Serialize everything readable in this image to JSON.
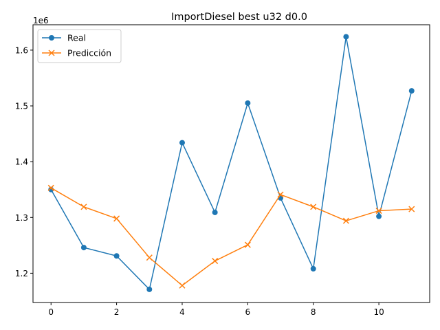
{
  "chart_data": {
    "type": "line",
    "title": "ImportDiesel best u32 d0.0",
    "xlabel": "",
    "ylabel": "",
    "y_offset_label": "1e6",
    "x": [
      0,
      1,
      2,
      3,
      4,
      5,
      6,
      7,
      8,
      9,
      10,
      11
    ],
    "xlim": [
      -0.55,
      11.55
    ],
    "ylim": [
      1.1475,
      1.6455
    ],
    "xticks": [
      0,
      2,
      4,
      6,
      8,
      10
    ],
    "xtick_labels": [
      "0",
      "2",
      "4",
      "6",
      "8",
      "10"
    ],
    "yticks": [
      1.2,
      1.3,
      1.4,
      1.5,
      1.6
    ],
    "ytick_labels": [
      "1.2",
      "1.3",
      "1.4",
      "1.5",
      "1.6"
    ],
    "grid": false,
    "legend_position": "top-left",
    "series": [
      {
        "name": "Real",
        "color": "#1f77b4",
        "marker": "circle",
        "values": [
          1.35,
          1.246,
          1.231,
          1.171,
          1.434,
          1.309,
          1.505,
          1.335,
          1.208,
          1.624,
          1.302,
          1.527
        ]
      },
      {
        "name": "Predicción",
        "color": "#ff7f0e",
        "marker": "x",
        "values": [
          1.353,
          1.319,
          1.298,
          1.228,
          1.178,
          1.222,
          1.251,
          1.341,
          1.319,
          1.294,
          1.312,
          1.315
        ]
      }
    ]
  }
}
